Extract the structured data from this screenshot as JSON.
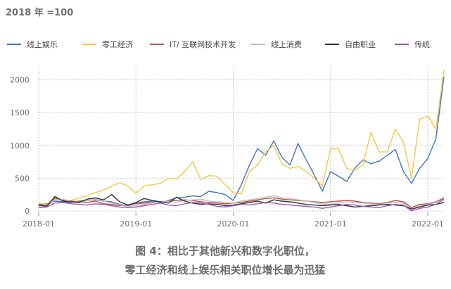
{
  "chart_data": {
    "type": "line",
    "subtitle": "2018 年 =100",
    "caption": [
      "图 4：相比于其他新兴和数字化职位，",
      "零工经济和线上娱乐相关职位增长最为迅猛"
    ],
    "xlim": [
      0,
      50
    ],
    "ylim": [
      0,
      2200
    ],
    "yticks": [
      0,
      500,
      1000,
      1500,
      2000
    ],
    "xticks": [
      {
        "label": "2018-01",
        "x": 0
      },
      {
        "label": "2019-01",
        "x": 12
      },
      {
        "label": "2020-01",
        "x": 24
      },
      {
        "label": "2021-01",
        "x": 36
      },
      {
        "label": "2022-01",
        "x": 48
      }
    ],
    "grid": true,
    "legend_position": "top",
    "series": [
      {
        "name": "线上娱乐",
        "color": "#4472c4",
        "values": [
          100,
          110,
          150,
          140,
          130,
          150,
          160,
          170,
          150,
          140,
          100,
          80,
          120,
          140,
          150,
          130,
          160,
          200,
          210,
          230,
          220,
          300,
          280,
          250,
          160,
          400,
          700,
          950,
          850,
          1070,
          820,
          700,
          1030,
          780,
          550,
          300,
          600,
          530,
          450,
          650,
          780,
          720,
          760,
          850,
          940,
          600,
          420,
          650,
          800,
          1100,
          2050
        ]
      },
      {
        "name": "零工经济",
        "color": "#f5c842",
        "values": [
          120,
          100,
          180,
          170,
          160,
          200,
          230,
          280,
          320,
          380,
          430,
          380,
          270,
          380,
          400,
          420,
          500,
          490,
          600,
          750,
          480,
          540,
          530,
          400,
          280,
          260,
          600,
          700,
          900,
          1000,
          720,
          650,
          680,
          600,
          500,
          380,
          950,
          950,
          650,
          620,
          700,
          1200,
          900,
          900,
          1250,
          1050,
          500,
          1400,
          1450,
          1250,
          2150
        ]
      },
      {
        "name": "IT/ 互联网技术开发",
        "color": "#c0504d",
        "values": [
          80,
          90,
          200,
          160,
          150,
          140,
          130,
          150,
          110,
          100,
          80,
          90,
          110,
          120,
          130,
          140,
          150,
          160,
          170,
          160,
          140,
          130,
          120,
          110,
          120,
          130,
          150,
          170,
          190,
          200,
          180,
          170,
          160,
          150,
          140,
          130,
          140,
          150,
          160,
          150,
          130,
          120,
          110,
          130,
          160,
          140,
          50,
          100,
          110,
          140,
          200
        ]
      },
      {
        "name": "线上消费",
        "color": "#bfbfbf",
        "values": [
          60,
          80,
          170,
          180,
          140,
          130,
          160,
          180,
          150,
          120,
          90,
          70,
          80,
          100,
          120,
          140,
          150,
          130,
          160,
          170,
          180,
          150,
          140,
          130,
          120,
          150,
          170,
          190,
          210,
          230,
          200,
          190,
          170,
          150,
          130,
          110,
          100,
          120,
          140,
          130,
          120,
          110,
          100,
          120,
          130,
          120,
          20,
          80,
          100,
          130,
          180
        ]
      },
      {
        "name": "自由职业",
        "color": "#333333",
        "values": [
          90,
          70,
          220,
          150,
          140,
          130,
          180,
          200,
          170,
          250,
          140,
          90,
          130,
          190,
          160,
          140,
          120,
          210,
          150,
          120,
          100,
          110,
          100,
          80,
          90,
          110,
          130,
          150,
          120,
          170,
          150,
          140,
          120,
          100,
          90,
          80,
          90,
          100,
          80,
          60,
          70,
          80,
          90,
          100,
          90,
          80,
          30,
          60,
          90,
          100,
          130
        ]
      },
      {
        "name": "传统",
        "color": "#9b59b6",
        "values": [
          50,
          60,
          120,
          130,
          110,
          100,
          90,
          110,
          100,
          80,
          60,
          50,
          60,
          80,
          100,
          120,
          90,
          80,
          110,
          130,
          120,
          100,
          70,
          60,
          80,
          100,
          90,
          110,
          130,
          120,
          100,
          90,
          80,
          70,
          60,
          40,
          60,
          80,
          100,
          90,
          70,
          60,
          50,
          80,
          100,
          90,
          0,
          40,
          60,
          100,
          180
        ]
      }
    ]
  }
}
